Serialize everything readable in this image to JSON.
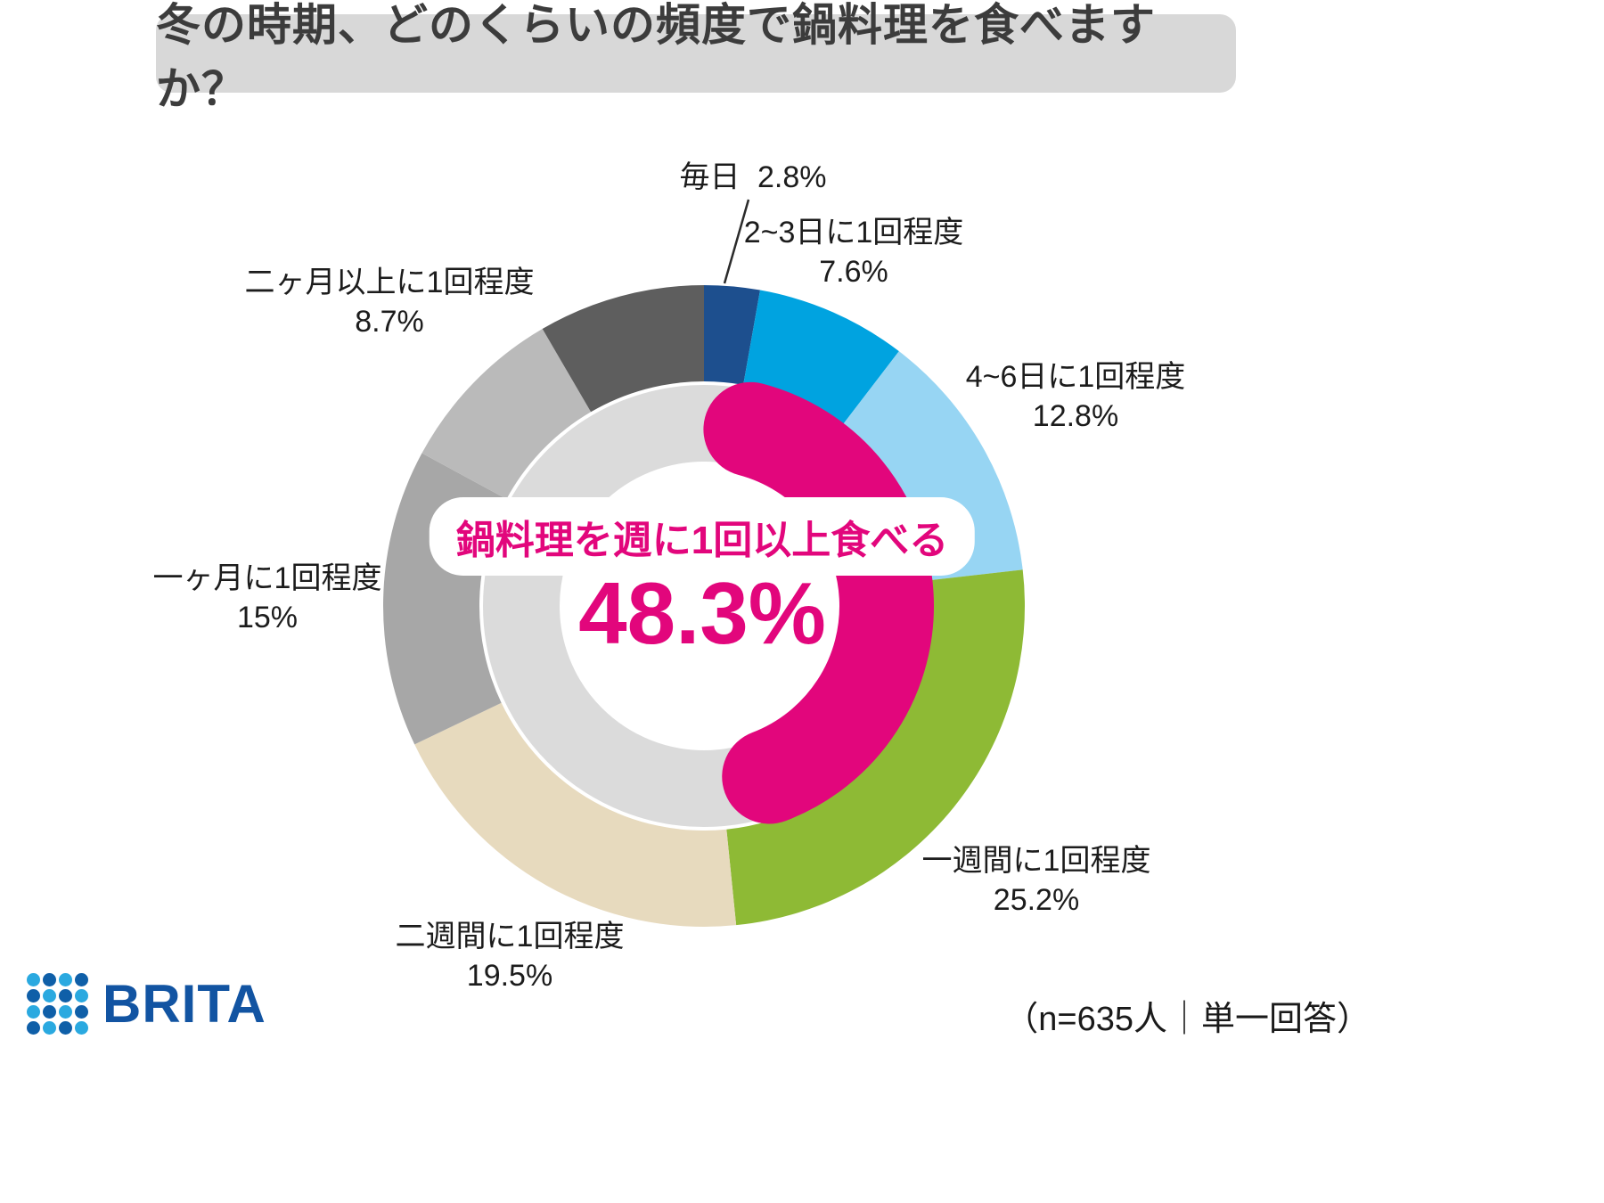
{
  "chart_data": {
    "type": "pie",
    "variant": "double-donut",
    "title": "冬の時期、どのくらいの頻度で鍋料理を食べますか？",
    "legend_position": "around",
    "segments": [
      {
        "label": "毎日",
        "value": 2.8,
        "pct_label": "2.8%",
        "color": "#1d4f8e"
      },
      {
        "label": "2~3日に1回程度",
        "value": 7.6,
        "pct_label": "7.6%",
        "color": "#00a3e0"
      },
      {
        "label": "4~6日に1回程度",
        "value": 12.8,
        "pct_label": "12.8%",
        "color": "#97d5f3"
      },
      {
        "label": "一週間に1回程度",
        "value": 25.2,
        "pct_label": "25.2%",
        "color": "#8eba35"
      },
      {
        "label": "二週間に1回程度",
        "value": 19.5,
        "pct_label": "19.5%",
        "color": "#e7dabe"
      },
      {
        "label": "一ヶ月に1回程度",
        "value": 15,
        "pct_label": "15%",
        "color": "#a7a7a7"
      },
      {
        "label": "二ヶ月以上に1回程度",
        "value": 8.7,
        "pct_label": "8.7%",
        "color": "#bababa"
      },
      {
        "label": "",
        "value": 8.4,
        "pct_label": "",
        "color": "#5e5e5e"
      }
    ],
    "inner_ring_color": "#dbdbdb",
    "highlight": {
      "label": "鍋料理を週に1回以上食べる",
      "value": 48.3,
      "value_label": "48.3%",
      "color": "#e2067c"
    }
  },
  "footer": {
    "note": "（n=635人｜単一回答）"
  },
  "brand": {
    "name": "BRITA",
    "logo_colors": [
      "#2aa9e0",
      "#0f5fa8"
    ]
  }
}
